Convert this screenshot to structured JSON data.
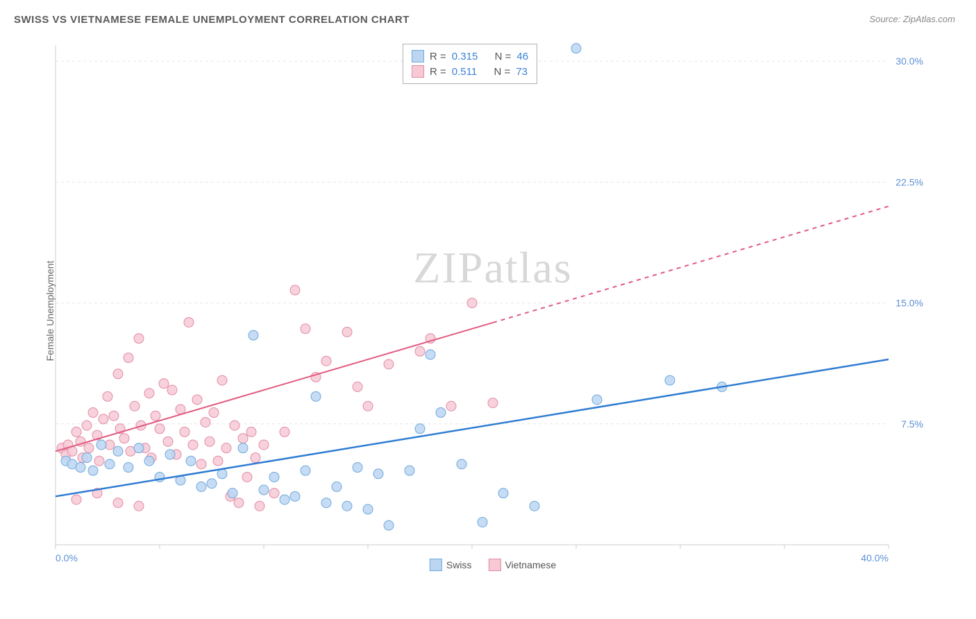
{
  "title": "SWISS VS VIETNAMESE FEMALE UNEMPLOYMENT CORRELATION CHART",
  "source_label": "Source:",
  "source_name": "ZipAtlas.com",
  "ylabel": "Female Unemployment",
  "watermark_a": "ZIP",
  "watermark_b": "atlas",
  "chart": {
    "type": "scatter",
    "xlim": [
      0,
      40
    ],
    "ylim": [
      0,
      31
    ],
    "x_ticks": [
      0,
      5,
      10,
      15,
      20,
      25,
      30,
      35,
      40
    ],
    "x_tick_labels": {
      "0": "0.0%",
      "40": "40.0%"
    },
    "y_ticks": [
      7.5,
      15.0,
      22.5,
      30.0
    ],
    "y_tick_labels": [
      "7.5%",
      "15.0%",
      "22.5%",
      "30.0%"
    ],
    "grid_color": "#e5e5e5",
    "axis_color": "#cccccc",
    "axis_label_color": "#5b8fd6",
    "background_color": "#ffffff",
    "series": [
      {
        "name": "Swiss",
        "color_fill": "#bcd6f2",
        "color_stroke": "#6ea8dc",
        "line_color": "#2f7cd2",
        "line_width": 2.5,
        "marker_radius": 7,
        "R_label": "R =",
        "R": "0.315",
        "N_label": "N =",
        "N": "46",
        "trend": {
          "x1": 0,
          "y1": 3.0,
          "x2": 40,
          "y2": 11.5,
          "solid_until": 40
        },
        "points": [
          [
            0.5,
            5.2
          ],
          [
            0.8,
            5.0
          ],
          [
            1.2,
            4.8
          ],
          [
            1.5,
            5.4
          ],
          [
            1.8,
            4.6
          ],
          [
            2.2,
            6.2
          ],
          [
            2.6,
            5.0
          ],
          [
            3.0,
            5.8
          ],
          [
            3.5,
            4.8
          ],
          [
            4.0,
            6.0
          ],
          [
            4.5,
            5.2
          ],
          [
            5.0,
            4.2
          ],
          [
            5.5,
            5.6
          ],
          [
            6.0,
            4.0
          ],
          [
            6.5,
            5.2
          ],
          [
            7.0,
            3.6
          ],
          [
            7.5,
            3.8
          ],
          [
            8.0,
            4.4
          ],
          [
            8.5,
            3.2
          ],
          [
            9.0,
            6.0
          ],
          [
            9.5,
            13.0
          ],
          [
            10.0,
            3.4
          ],
          [
            10.5,
            4.2
          ],
          [
            11.0,
            2.8
          ],
          [
            11.5,
            3.0
          ],
          [
            12.0,
            4.6
          ],
          [
            12.5,
            9.2
          ],
          [
            13.0,
            2.6
          ],
          [
            13.5,
            3.6
          ],
          [
            14.0,
            2.4
          ],
          [
            14.5,
            4.8
          ],
          [
            15.0,
            2.2
          ],
          [
            15.5,
            4.4
          ],
          [
            16.0,
            1.2
          ],
          [
            17.0,
            4.6
          ],
          [
            17.5,
            7.2
          ],
          [
            18.0,
            11.8
          ],
          [
            18.5,
            8.2
          ],
          [
            19.5,
            5.0
          ],
          [
            20.5,
            1.4
          ],
          [
            21.5,
            3.2
          ],
          [
            23.0,
            2.4
          ],
          [
            25.0,
            30.8
          ],
          [
            26.0,
            9.0
          ],
          [
            29.5,
            10.2
          ],
          [
            32.0,
            9.8
          ]
        ]
      },
      {
        "name": "Vietnamese",
        "color_fill": "#f6c9d5",
        "color_stroke": "#e38ba5",
        "line_color": "#e15a7f",
        "line_width": 2,
        "marker_radius": 7,
        "R_label": "R =",
        "R": "0.511",
        "N_label": "N =",
        "N": "73",
        "trend": {
          "x1": 0,
          "y1": 5.8,
          "x2": 40,
          "y2": 21.0,
          "solid_until": 21
        },
        "points": [
          [
            0.3,
            6.0
          ],
          [
            0.5,
            5.6
          ],
          [
            0.6,
            6.2
          ],
          [
            0.8,
            5.8
          ],
          [
            1.0,
            7.0
          ],
          [
            1.2,
            6.4
          ],
          [
            1.3,
            5.4
          ],
          [
            1.5,
            7.4
          ],
          [
            1.6,
            6.0
          ],
          [
            1.8,
            8.2
          ],
          [
            2.0,
            6.8
          ],
          [
            2.1,
            5.2
          ],
          [
            2.3,
            7.8
          ],
          [
            2.5,
            9.2
          ],
          [
            2.6,
            6.2
          ],
          [
            2.8,
            8.0
          ],
          [
            3.0,
            10.6
          ],
          [
            3.1,
            7.2
          ],
          [
            3.3,
            6.6
          ],
          [
            3.5,
            11.6
          ],
          [
            3.6,
            5.8
          ],
          [
            3.8,
            8.6
          ],
          [
            4.0,
            12.8
          ],
          [
            4.1,
            7.4
          ],
          [
            4.3,
            6.0
          ],
          [
            4.5,
            9.4
          ],
          [
            4.6,
            5.4
          ],
          [
            4.8,
            8.0
          ],
          [
            5.0,
            7.2
          ],
          [
            5.2,
            10.0
          ],
          [
            5.4,
            6.4
          ],
          [
            5.6,
            9.6
          ],
          [
            5.8,
            5.6
          ],
          [
            6.0,
            8.4
          ],
          [
            6.2,
            7.0
          ],
          [
            6.4,
            13.8
          ],
          [
            6.6,
            6.2
          ],
          [
            6.8,
            9.0
          ],
          [
            7.0,
            5.0
          ],
          [
            7.2,
            7.6
          ],
          [
            7.4,
            6.4
          ],
          [
            7.6,
            8.2
          ],
          [
            7.8,
            5.2
          ],
          [
            8.0,
            10.2
          ],
          [
            8.2,
            6.0
          ],
          [
            8.4,
            3.0
          ],
          [
            8.6,
            7.4
          ],
          [
            8.8,
            2.6
          ],
          [
            9.0,
            6.6
          ],
          [
            9.2,
            4.2
          ],
          [
            9.4,
            7.0
          ],
          [
            9.6,
            5.4
          ],
          [
            9.8,
            2.4
          ],
          [
            10.0,
            6.2
          ],
          [
            10.5,
            3.2
          ],
          [
            11.0,
            7.0
          ],
          [
            11.5,
            15.8
          ],
          [
            12.0,
            13.4
          ],
          [
            12.5,
            10.4
          ],
          [
            13.0,
            11.4
          ],
          [
            14.0,
            13.2
          ],
          [
            14.5,
            9.8
          ],
          [
            15.0,
            8.6
          ],
          [
            16.0,
            11.2
          ],
          [
            17.5,
            12.0
          ],
          [
            18.0,
            12.8
          ],
          [
            19.0,
            8.6
          ],
          [
            20.0,
            15.0
          ],
          [
            21.0,
            8.8
          ],
          [
            1.0,
            2.8
          ],
          [
            2.0,
            3.2
          ],
          [
            3.0,
            2.6
          ],
          [
            4.0,
            2.4
          ]
        ]
      }
    ]
  },
  "legend": {
    "swiss": "Swiss",
    "vietnamese": "Vietnamese"
  }
}
